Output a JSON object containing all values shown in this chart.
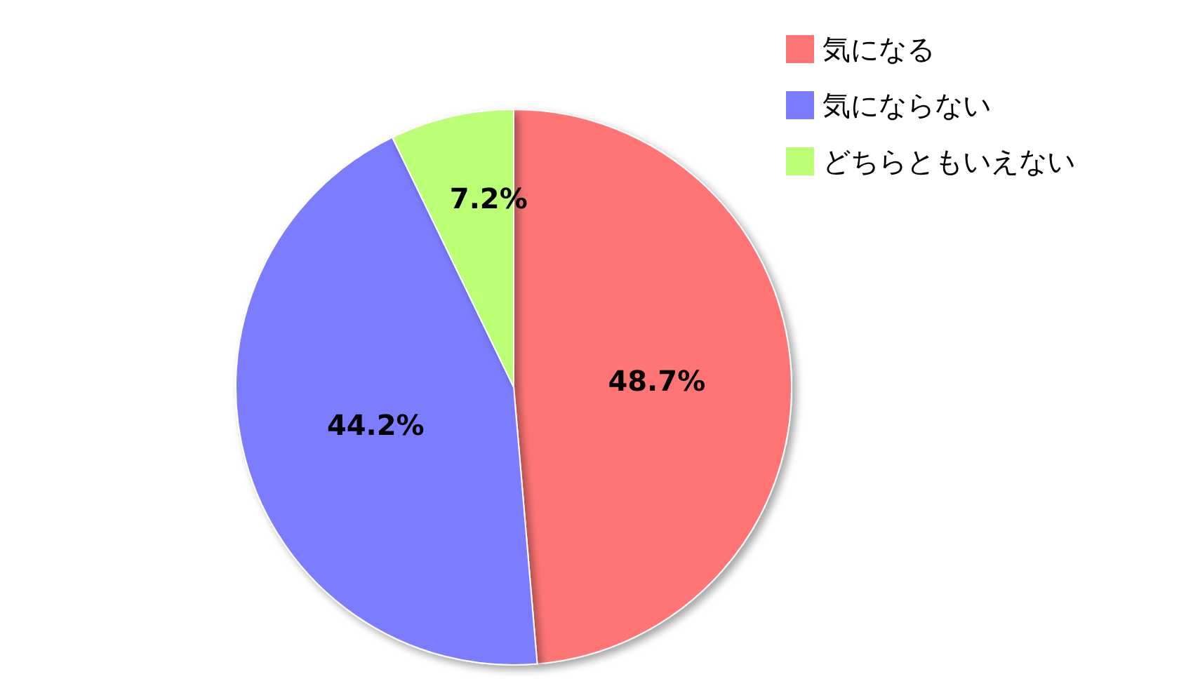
{
  "chart_data": {
    "type": "pie",
    "categories": [
      "気になる",
      "気にならない",
      "どちらともいえない"
    ],
    "values": [
      48.7,
      44.2,
      7.2
    ],
    "colors": [
      "#ff7575",
      "#7b7bff",
      "#bbff75"
    ],
    "value_labels": [
      "48.7%",
      "44.2%",
      "7.2%"
    ],
    "legend": "top right"
  }
}
